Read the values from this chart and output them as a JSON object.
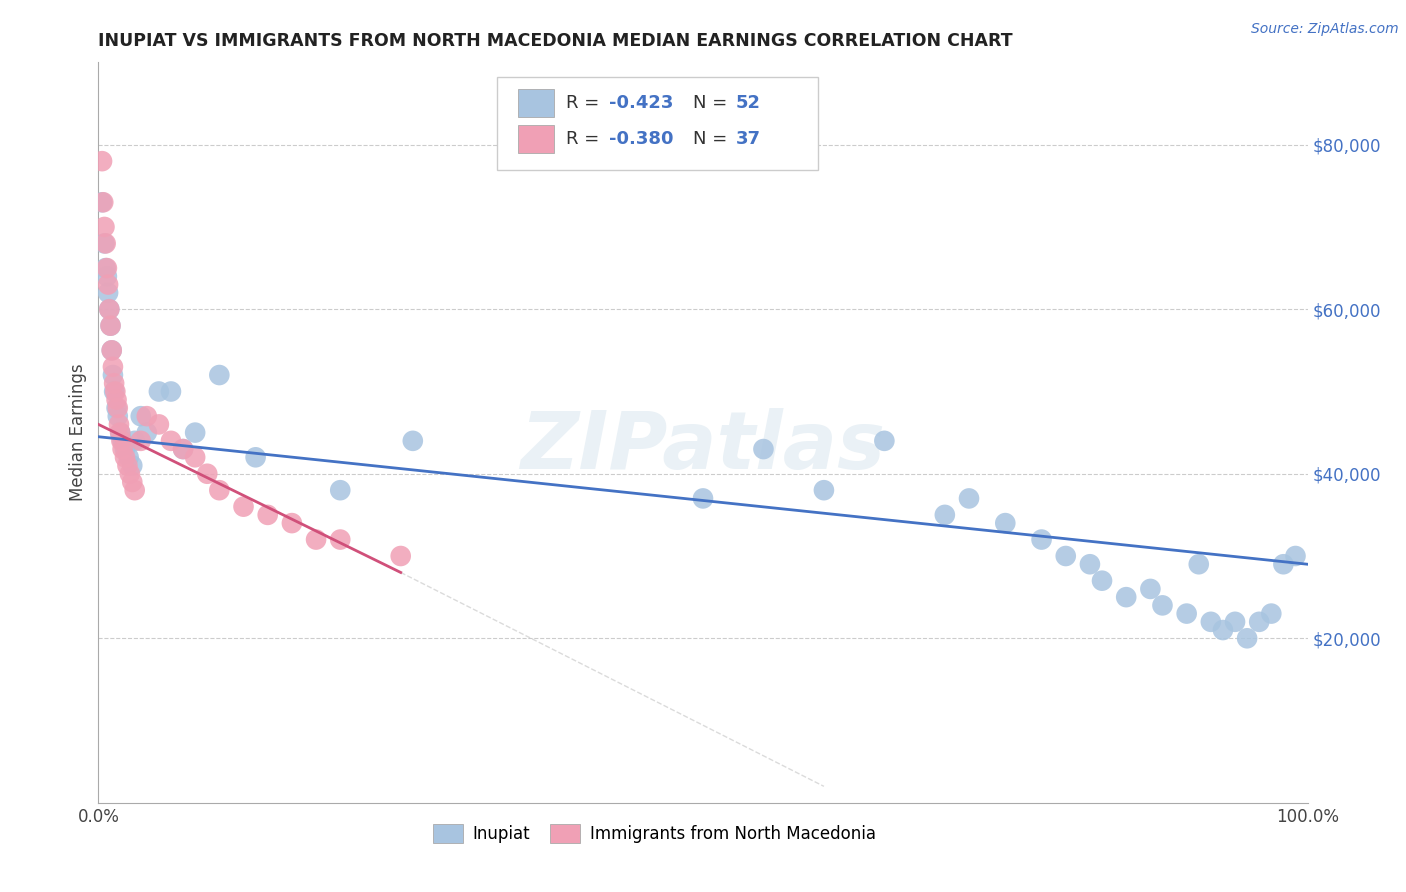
{
  "title": "INUPIAT VS IMMIGRANTS FROM NORTH MACEDONIA MEDIAN EARNINGS CORRELATION CHART",
  "source": "Source: ZipAtlas.com",
  "ylabel": "Median Earnings",
  "xlim": [
    0,
    1.0
  ],
  "ylim": [
    0,
    90000
  ],
  "ytick_values": [
    20000,
    40000,
    60000,
    80000
  ],
  "legend_r_blue": "-0.423",
  "legend_n_blue": "52",
  "legend_r_pink": "-0.380",
  "legend_n_pink": "37",
  "legend_label_blue": "Inupiat",
  "legend_label_pink": "Immigrants from North Macedonia",
  "blue_color": "#a8c4e0",
  "pink_color": "#f0a0b5",
  "line_blue": "#4472c4",
  "line_pink": "#d0507a",
  "watermark": "ZIPatlas",
  "blue_x": [
    0.003,
    0.005,
    0.006,
    0.007,
    0.008,
    0.009,
    0.01,
    0.011,
    0.012,
    0.013,
    0.015,
    0.016,
    0.018,
    0.02,
    0.022,
    0.025,
    0.028,
    0.03,
    0.035,
    0.04,
    0.05,
    0.06,
    0.07,
    0.08,
    0.1,
    0.13,
    0.2,
    0.26,
    0.5,
    0.55,
    0.6,
    0.65,
    0.7,
    0.72,
    0.75,
    0.78,
    0.8,
    0.82,
    0.83,
    0.85,
    0.87,
    0.88,
    0.9,
    0.91,
    0.92,
    0.93,
    0.94,
    0.95,
    0.96,
    0.97,
    0.98,
    0.99
  ],
  "blue_y": [
    73000,
    68000,
    65000,
    64000,
    62000,
    60000,
    58000,
    55000,
    52000,
    50000,
    48000,
    47000,
    45000,
    44000,
    43000,
    42000,
    41000,
    44000,
    47000,
    45000,
    50000,
    50000,
    43000,
    45000,
    52000,
    42000,
    38000,
    44000,
    37000,
    43000,
    38000,
    44000,
    35000,
    37000,
    34000,
    32000,
    30000,
    29000,
    27000,
    25000,
    26000,
    24000,
    23000,
    29000,
    22000,
    21000,
    22000,
    20000,
    22000,
    23000,
    29000,
    30000
  ],
  "pink_x": [
    0.003,
    0.004,
    0.005,
    0.006,
    0.007,
    0.008,
    0.009,
    0.01,
    0.011,
    0.012,
    0.013,
    0.014,
    0.015,
    0.016,
    0.017,
    0.018,
    0.019,
    0.02,
    0.022,
    0.024,
    0.026,
    0.028,
    0.03,
    0.035,
    0.04,
    0.05,
    0.06,
    0.07,
    0.08,
    0.09,
    0.1,
    0.12,
    0.14,
    0.16,
    0.18,
    0.2,
    0.25
  ],
  "pink_y": [
    78000,
    73000,
    70000,
    68000,
    65000,
    63000,
    60000,
    58000,
    55000,
    53000,
    51000,
    50000,
    49000,
    48000,
    46000,
    45000,
    44000,
    43000,
    42000,
    41000,
    40000,
    39000,
    38000,
    44000,
    47000,
    46000,
    44000,
    43000,
    42000,
    40000,
    38000,
    36000,
    35000,
    34000,
    32000,
    32000,
    30000
  ]
}
